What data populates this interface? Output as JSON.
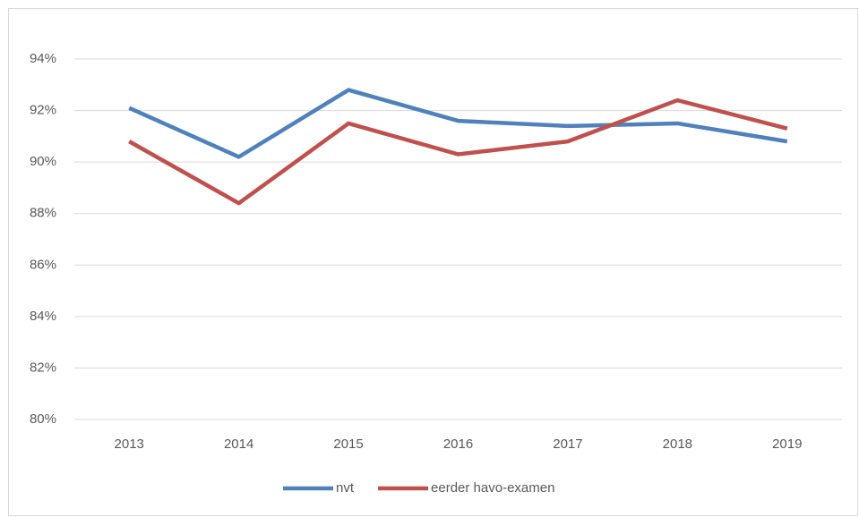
{
  "chart_data": {
    "type": "line",
    "categories": [
      "2013",
      "2014",
      "2015",
      "2016",
      "2017",
      "2018",
      "2019"
    ],
    "series": [
      {
        "name": "nvt",
        "color": "#4f81bd",
        "values": [
          92.1,
          90.2,
          92.8,
          91.6,
          91.4,
          91.5,
          90.8
        ]
      },
      {
        "name": "eerder havo-examen",
        "color": "#c0504d",
        "values": [
          90.8,
          88.4,
          91.5,
          90.3,
          90.8,
          92.4,
          91.3
        ]
      }
    ],
    "ylim": [
      80,
      94
    ],
    "yticks": [
      {
        "value": 80,
        "label": "80%"
      },
      {
        "value": 82,
        "label": "82%"
      },
      {
        "value": 84,
        "label": "84%"
      },
      {
        "value": 86,
        "label": "86%"
      },
      {
        "value": 88,
        "label": "88%"
      },
      {
        "value": 90,
        "label": "90%"
      },
      {
        "value": 92,
        "label": "92%"
      },
      {
        "value": 94,
        "label": "94%"
      }
    ],
    "grid": true,
    "legend": "bottom"
  }
}
